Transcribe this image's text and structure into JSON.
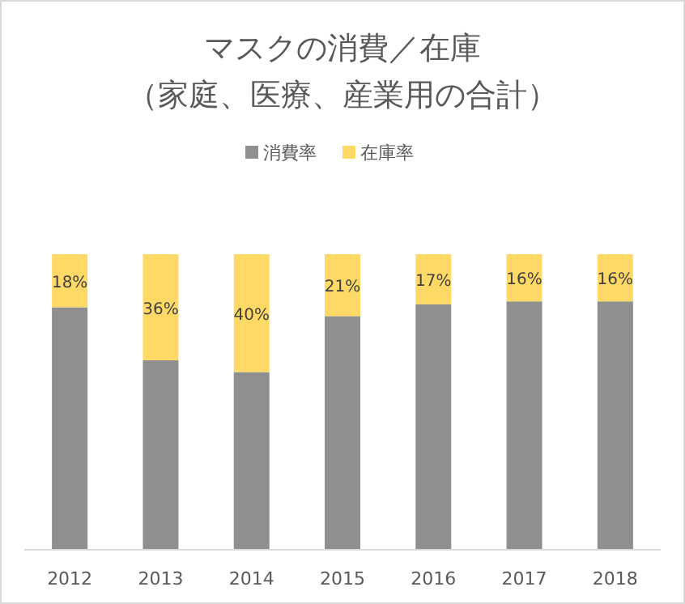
{
  "chart_data": {
    "type": "bar",
    "stacked": true,
    "title": "マスクの消費／在庫",
    "subtitle": "（家庭、医療、産業用の合計）",
    "categories": [
      "2012",
      "2013",
      "2014",
      "2015",
      "2016",
      "2017",
      "2018"
    ],
    "legend": "top",
    "tick_labels": "x",
    "series": [
      {
        "name": "消費率",
        "color": "#8f8f8f",
        "values": [
          82,
          64,
          60,
          79,
          83,
          84,
          84
        ]
      },
      {
        "name": "在庫率",
        "color": "#ffd966",
        "values": [
          18,
          36,
          40,
          21,
          17,
          16,
          16
        ],
        "value_labels": [
          "18%",
          "36%",
          "40%",
          "21%",
          "17%",
          "16%",
          "16%"
        ]
      }
    ]
  }
}
